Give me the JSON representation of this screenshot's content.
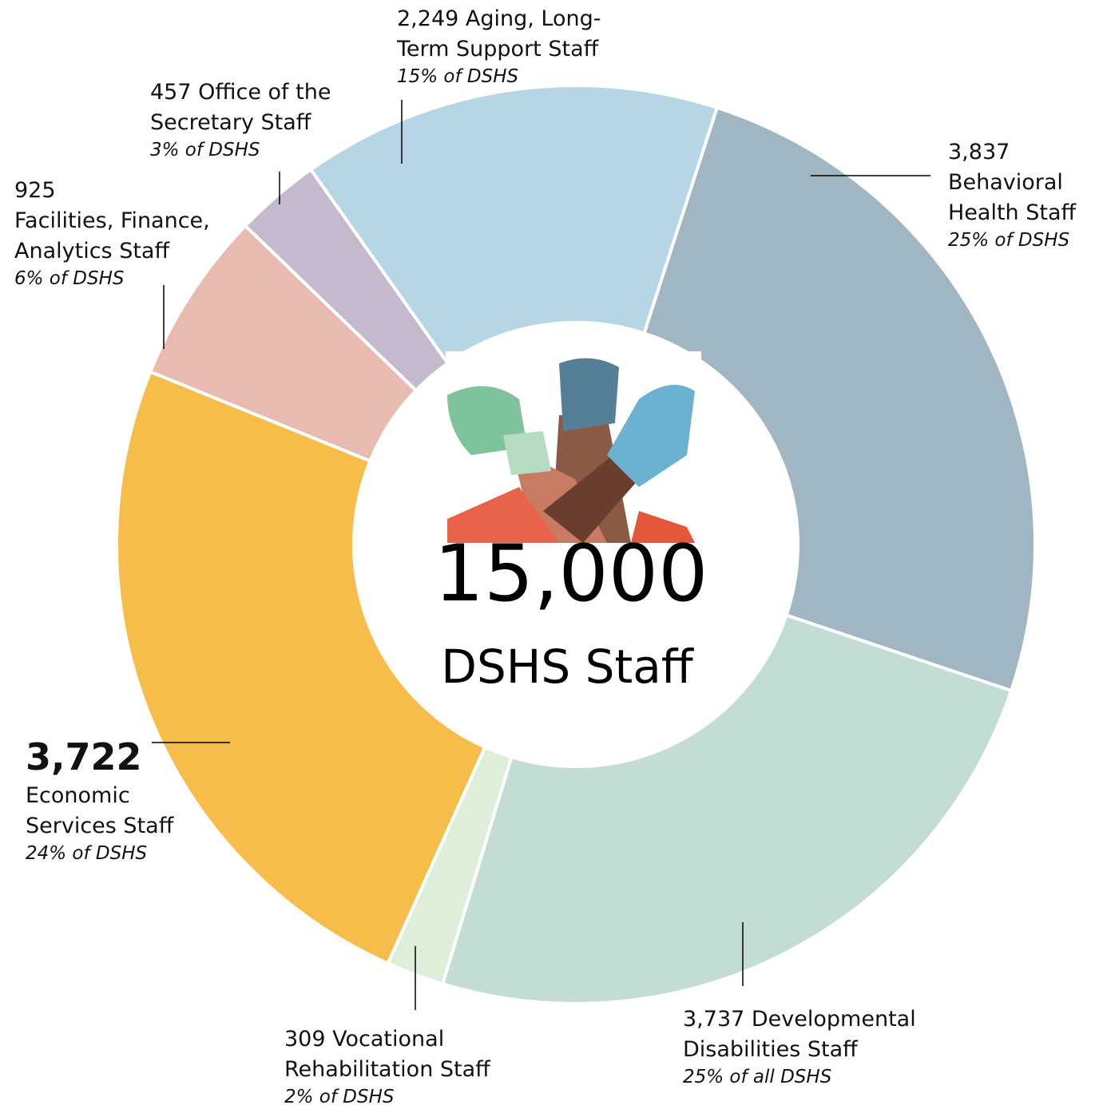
{
  "chart_data": {
    "type": "donut",
    "categories": [
      "Behavioral Health Staff",
      "Developmental Disabilities Staff",
      "Vocational Rehabilitation Staff",
      "Economic Services Staff",
      "Facilities, Finance, Analytics Staff",
      "Office of the Secretary Staff",
      "Aging, Long-Term Support Staff"
    ],
    "values": [
      3837,
      3737,
      309,
      3722,
      925,
      457,
      2249
    ],
    "value_labels": [
      "3,837",
      "3,737",
      "309",
      "3,722",
      "925",
      "457",
      "2,249"
    ],
    "shares": [
      "25% of DSHS",
      "25% of all DSHS",
      "2% of DSHS",
      "24% of DSHS",
      "6% of DSHS",
      "3% of DSHS",
      "15% of DSHS"
    ],
    "colors": [
      "#a0b6c2",
      "#c3ddd4",
      "#deeed9",
      "#f7bd4b",
      "#e8bab0",
      "#c5bacd",
      "#b6d6e5"
    ],
    "total": {
      "value": 15000,
      "label": "15,000"
    },
    "center_label": "DSHS Staff"
  }
}
